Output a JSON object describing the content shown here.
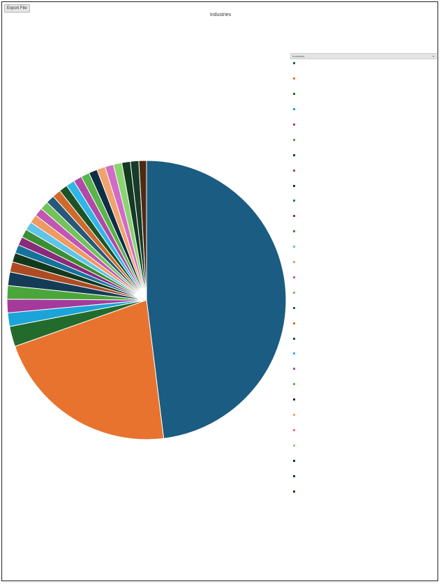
{
  "toolbar": {
    "export_label": "Export File"
  },
  "legend": {
    "header": "Industries"
  },
  "colors": {
    "slices": [
      "#1a5c82",
      "#e8732e",
      "#236b2d",
      "#1ba4d8",
      "#a43a9c",
      "#4aa63a",
      "#143c57",
      "#ad4b24",
      "#13391c",
      "#16729c",
      "#8a2a7a",
      "#3b8f30",
      "#5fc4ea",
      "#ee9a63",
      "#c156b4",
      "#72c35a",
      "#27587a",
      "#cf6a2b",
      "#1d5427",
      "#2fb6e8",
      "#b14aa6",
      "#5ab44b",
      "#0e2e45",
      "#f0a36f",
      "#d06cc5",
      "#8bd372",
      "#143a21",
      "#183c2a",
      "#4d2a12"
    ]
  },
  "chart_data": {
    "type": "pie",
    "title": "Industries",
    "legend_position": "right",
    "labels": [
      "",
      "",
      "",
      "",
      "",
      "",
      "",
      "",
      "",
      "",
      "",
      "",
      "",
      "",
      "",
      "",
      "",
      "",
      "",
      "",
      "",
      "",
      "",
      "",
      "",
      "",
      "",
      "",
      ""
    ],
    "values": [
      49.0,
      22.0,
      2.4,
      1.6,
      1.6,
      1.6,
      1.6,
      1.2,
      1.1,
      1.0,
      1.0,
      1.0,
      1.0,
      1.0,
      1.0,
      1.0,
      1.0,
      1.0,
      1.0,
      1.0,
      1.0,
      1.0,
      1.0,
      1.0,
      1.0,
      1.0,
      1.0,
      1.0,
      0.9
    ]
  }
}
